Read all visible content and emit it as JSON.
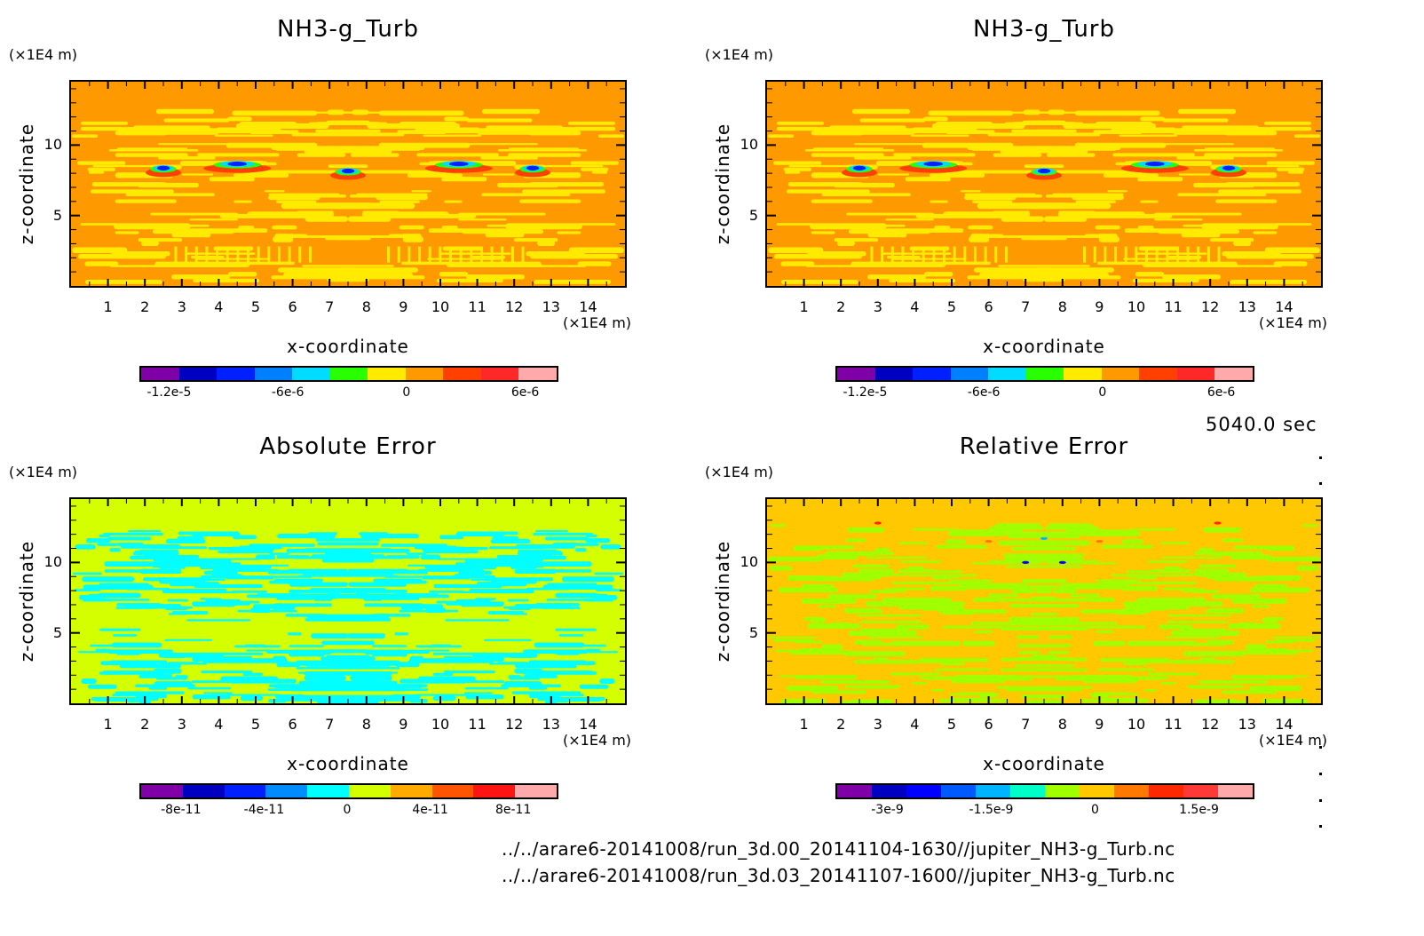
{
  "time_label": "5040.0 sec",
  "files": [
    "../../arare6-20141008/run_3d.00_20141104-1630//jupiter_NH3-g_Turb.nc",
    "../../arare6-20141008/run_3d.03_20141107-1600//jupiter_NH3-g_Turb.nc"
  ],
  "chart_data": [
    {
      "type": "heatmap",
      "title": "NH3-g_Turb",
      "xlabel": "x-coordinate",
      "ylabel": "z-coordinate",
      "x_unit": "(×1E4 m)",
      "y_unit": "(×1E4 m)",
      "xlim": [
        0,
        15
      ],
      "ylim": [
        0,
        14.5
      ],
      "xticks": [
        "1",
        "2",
        "3",
        "4",
        "5",
        "6",
        "7",
        "8",
        "9",
        "10",
        "11",
        "12",
        "13",
        "14"
      ],
      "yticks": [
        "5",
        "10"
      ],
      "background_level_color": "#ff9900",
      "colorbar": {
        "colors": [
          "#8000a8",
          "#0000c0",
          "#0020ff",
          "#0080ff",
          "#00dcff",
          "#28ff00",
          "#ffea00",
          "#ff9900",
          "#ff4000",
          "#ff2828",
          "#ffaaaa"
        ],
        "levels_range": [
          -1.35e-05,
          7.5e-06
        ],
        "tick_labels": [
          "-1.2e-5",
          "-6e-6",
          "0",
          "6e-6"
        ],
        "tick_values": [
          -1.2e-05,
          -6e-06,
          0,
          6e-06
        ]
      },
      "field_colors": {
        "base": "#ff9900",
        "stripe": "#ffea00",
        "front_low": "#ff4000",
        "front_mid": "#28ff00",
        "front_core": "#00dcff",
        "front_min": "#0020ff"
      },
      "features": [
        {
          "x": 2.5,
          "z": 8.3
        },
        {
          "x": 4.5,
          "z": 8.6
        },
        {
          "x": 7.5,
          "z": 8.1
        },
        {
          "x": 10.5,
          "z": 8.6
        },
        {
          "x": 12.5,
          "z": 8.3
        }
      ]
    },
    {
      "type": "heatmap",
      "title": "NH3-g_Turb",
      "xlabel": "x-coordinate",
      "ylabel": "z-coordinate",
      "x_unit": "(×1E4 m)",
      "y_unit": "(×1E4 m)",
      "xlim": [
        0,
        15
      ],
      "ylim": [
        0,
        14.5
      ],
      "xticks": [
        "1",
        "2",
        "3",
        "4",
        "5",
        "6",
        "7",
        "8",
        "9",
        "10",
        "11",
        "12",
        "13",
        "14"
      ],
      "yticks": [
        "5",
        "10"
      ],
      "colorbar": {
        "colors": [
          "#8000a8",
          "#0000c0",
          "#0020ff",
          "#0080ff",
          "#00dcff",
          "#28ff00",
          "#ffea00",
          "#ff9900",
          "#ff4000",
          "#ff2828",
          "#ffaaaa"
        ],
        "levels_range": [
          -1.35e-05,
          7.5e-06
        ],
        "tick_labels": [
          "-1.2e-5",
          "-6e-6",
          "0",
          "6e-6"
        ],
        "tick_values": [
          -1.2e-05,
          -6e-06,
          0,
          6e-06
        ]
      },
      "field_colors": {
        "base": "#ff9900",
        "stripe": "#ffea00",
        "front_low": "#ff4000",
        "front_mid": "#28ff00",
        "front_core": "#00dcff",
        "front_min": "#0020ff"
      },
      "features": [
        {
          "x": 2.5,
          "z": 8.3
        },
        {
          "x": 4.5,
          "z": 8.6
        },
        {
          "x": 7.5,
          "z": 8.1
        },
        {
          "x": 10.5,
          "z": 8.6
        },
        {
          "x": 12.5,
          "z": 8.3
        }
      ]
    },
    {
      "type": "heatmap",
      "title": "Absolute Error",
      "xlabel": "x-coordinate",
      "ylabel": "z-coordinate",
      "x_unit": "(×1E4 m)",
      "y_unit": "(×1E4 m)",
      "xlim": [
        0,
        15
      ],
      "ylim": [
        0,
        14.5
      ],
      "xticks": [
        "1",
        "2",
        "3",
        "4",
        "5",
        "6",
        "7",
        "8",
        "9",
        "10",
        "11",
        "12",
        "13",
        "14"
      ],
      "yticks": [
        "5",
        "10"
      ],
      "colorbar": {
        "colors": [
          "#8000a8",
          "#0000c0",
          "#0020ff",
          "#008cff",
          "#00ffff",
          "#d4ff00",
          "#ffaa00",
          "#ff5500",
          "#ff1414",
          "#ffaaaa"
        ],
        "levels_range": [
          -1e-10,
          1e-10
        ],
        "tick_labels": [
          "-8e-11",
          "-4e-11",
          "0",
          "4e-11",
          "8e-11"
        ],
        "tick_values": [
          -8e-11,
          -4e-11,
          0,
          4e-11,
          8e-11
        ]
      },
      "field_colors": {
        "base": "#d4ff00",
        "stripe": "#00ffff"
      },
      "stripe_band_z": [
        0,
        12.5
      ]
    },
    {
      "type": "heatmap",
      "title": "Relative Error",
      "xlabel": "x-coordinate",
      "ylabel": "z-coordinate",
      "x_unit": "(×1E4 m)",
      "y_unit": "(×1E4 m)",
      "xlim": [
        0,
        15
      ],
      "ylim": [
        0,
        14.5
      ],
      "xticks": [
        "1",
        "2",
        "3",
        "4",
        "5",
        "6",
        "7",
        "8",
        "9",
        "10",
        "11",
        "12",
        "13",
        "14"
      ],
      "yticks": [
        "5",
        "10"
      ],
      "colorbar": {
        "colors": [
          "#8000a8",
          "#0000c0",
          "#0000ff",
          "#005aff",
          "#00b4ff",
          "#00ffc8",
          "#a0ff00",
          "#ffc800",
          "#ff7800",
          "#ff2800",
          "#ff3838",
          "#ffaaaa"
        ],
        "levels_range": [
          -3.75e-09,
          2.25e-09
        ],
        "tick_labels": [
          "-3e-9",
          "-1.5e-9",
          "0",
          "1.5e-9"
        ],
        "tick_values": [
          -3e-09,
          -1.5e-09,
          0,
          1.5e-09
        ]
      },
      "field_colors": {
        "base": "#ffc800",
        "stripe": "#a0ff00"
      },
      "stripe_band_z": [
        0,
        13
      ]
    }
  ]
}
